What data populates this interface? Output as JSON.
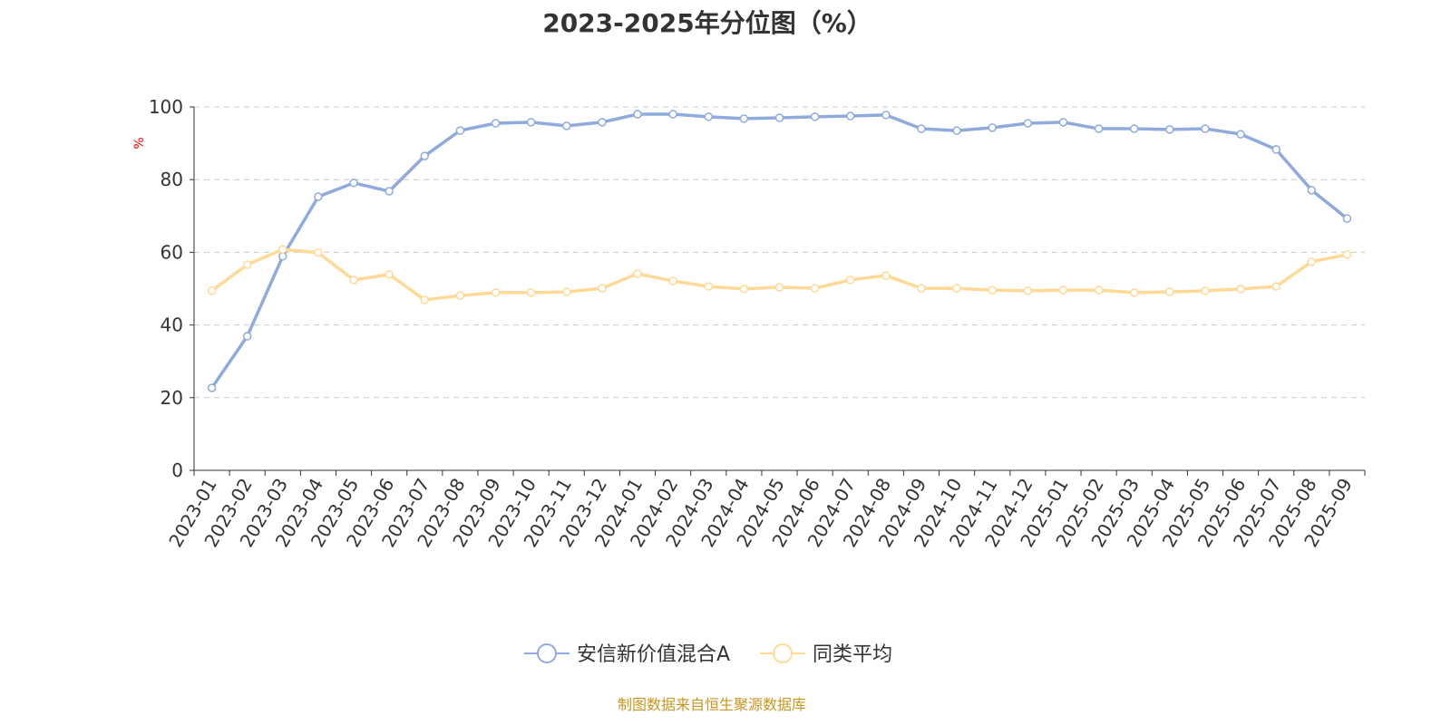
{
  "chart_data": {
    "type": "line",
    "title": "2023-2025年分位图（%）",
    "ylabel": "%",
    "xlabel": "",
    "ylim": [
      0,
      100
    ],
    "yticks": [
      0,
      20,
      40,
      60,
      80,
      100
    ],
    "grid": true,
    "legend_position": "bottom",
    "categories": [
      "2023-01",
      "2023-02",
      "2023-03",
      "2023-04",
      "2023-05",
      "2023-06",
      "2023-07",
      "2023-08",
      "2023-09",
      "2023-10",
      "2023-11",
      "2023-12",
      "2024-01",
      "2024-02",
      "2024-03",
      "2024-04",
      "2024-05",
      "2024-06",
      "2024-07",
      "2024-08",
      "2024-09",
      "2024-10",
      "2024-11",
      "2024-12",
      "2025-01",
      "2025-02",
      "2025-03",
      "2025-04",
      "2025-05",
      "2025-06",
      "2025-07",
      "2025-08",
      "2025-09"
    ],
    "series": [
      {
        "name": "安信新价值混合A",
        "color": "#8faadc",
        "values": [
          22.7,
          36.9,
          58.9,
          75.3,
          79.1,
          76.8,
          86.5,
          93.5,
          95.5,
          95.8,
          94.8,
          95.8,
          98.0,
          98.0,
          97.3,
          96.8,
          97.0,
          97.3,
          97.5,
          97.8,
          94.0,
          93.5,
          94.3,
          95.5,
          95.8,
          94.0,
          94.0,
          93.8,
          94.0,
          92.5,
          88.3,
          77.1,
          69.3
        ]
      },
      {
        "name": "同类平均",
        "color": "#ffd995",
        "values": [
          49.4,
          56.6,
          60.8,
          59.9,
          52.4,
          53.9,
          46.9,
          48.1,
          48.9,
          48.9,
          49.1,
          50.1,
          54.1,
          52.1,
          50.6,
          49.9,
          50.4,
          50.1,
          52.4,
          53.6,
          50.1,
          50.1,
          49.6,
          49.4,
          49.6,
          49.6,
          48.9,
          49.1,
          49.4,
          49.9,
          50.6,
          57.4,
          59.4
        ]
      }
    ]
  },
  "footer": "制图数据来自恒生聚源数据库"
}
